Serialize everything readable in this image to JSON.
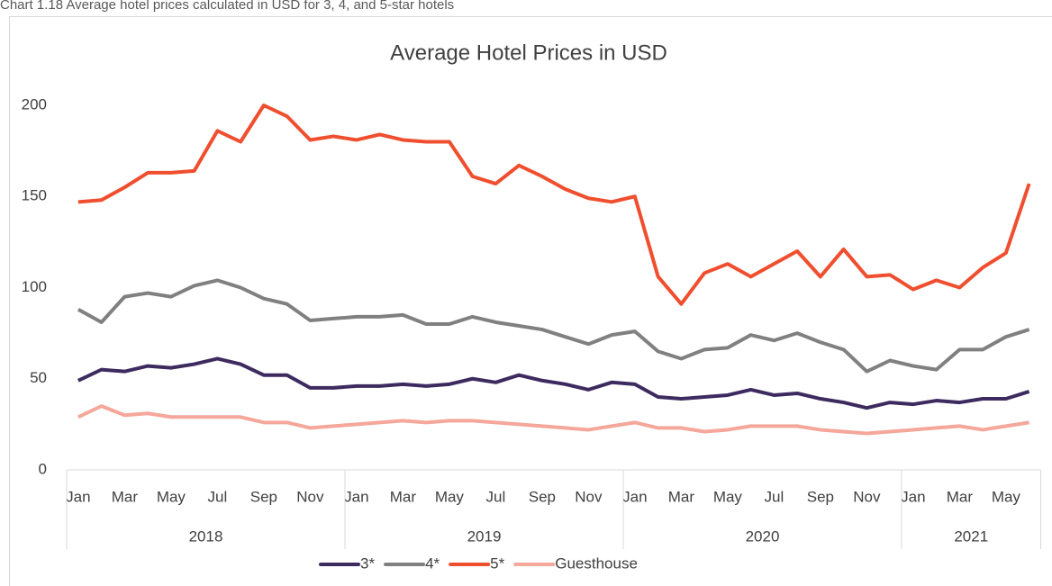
{
  "caption": "Chart 1.18 Average hotel prices calculated in USD for 3, 4, and 5-star hotels",
  "chart_data": {
    "type": "line",
    "title": "Average Hotel Prices in USD",
    "categories": [
      "Jan",
      null,
      "Mar",
      null,
      "May",
      null,
      "Jul",
      null,
      "Sep",
      null,
      "Nov",
      null,
      "Jan",
      null,
      "Mar",
      null,
      "May",
      null,
      "Jul",
      null,
      "Sep",
      null,
      "Nov",
      null,
      "Jan",
      null,
      "Mar",
      null,
      "May",
      null,
      "Jul",
      null,
      "Sep",
      null,
      "Nov",
      null,
      "Jan",
      null,
      "Mar",
      null,
      "May",
      null
    ],
    "years": [
      "2018",
      "2019",
      "2020",
      "2021"
    ],
    "series": [
      {
        "name": "3*",
        "color": "#3d2b5f",
        "values": [
          49,
          55,
          54,
          57,
          56,
          58,
          61,
          58,
          52,
          52,
          45,
          45,
          46,
          46,
          47,
          46,
          47,
          50,
          48,
          52,
          49,
          47,
          44,
          48,
          47,
          40,
          39,
          40,
          41,
          44,
          41,
          42,
          39,
          37,
          34,
          37,
          36,
          38,
          37,
          39,
          39,
          43
        ]
      },
      {
        "name": "4*",
        "color": "#808080",
        "values": [
          88,
          81,
          95,
          97,
          95,
          101,
          104,
          100,
          94,
          91,
          82,
          83,
          84,
          84,
          85,
          80,
          80,
          84,
          81,
          79,
          77,
          73,
          69,
          74,
          76,
          65,
          61,
          66,
          67,
          74,
          71,
          75,
          70,
          66,
          54,
          60,
          57,
          55,
          66,
          66,
          73,
          77
        ]
      },
      {
        "name": "5*",
        "color": "#ef4f2f",
        "values": [
          147,
          148,
          155,
          163,
          163,
          164,
          186,
          180,
          200,
          194,
          181,
          183,
          181,
          184,
          181,
          180,
          180,
          161,
          157,
          167,
          161,
          154,
          149,
          147,
          150,
          106,
          91,
          108,
          113,
          106,
          113,
          120,
          106,
          121,
          106,
          107,
          99,
          104,
          100,
          111,
          119,
          157
        ]
      },
      {
        "name": "Guesthouse",
        "color": "#f4a79a",
        "values": [
          29,
          35,
          30,
          31,
          29,
          29,
          29,
          29,
          26,
          26,
          23,
          24,
          25,
          26,
          27,
          26,
          27,
          27,
          26,
          25,
          24,
          23,
          22,
          24,
          26,
          23,
          23,
          21,
          22,
          24,
          24,
          24,
          22,
          21,
          20,
          21,
          22,
          23,
          24,
          22,
          24,
          26
        ]
      }
    ],
    "ylim": [
      0,
      200
    ],
    "yticks": [
      0,
      50,
      100,
      150,
      200
    ],
    "grid": false,
    "legend": "bottom"
  }
}
